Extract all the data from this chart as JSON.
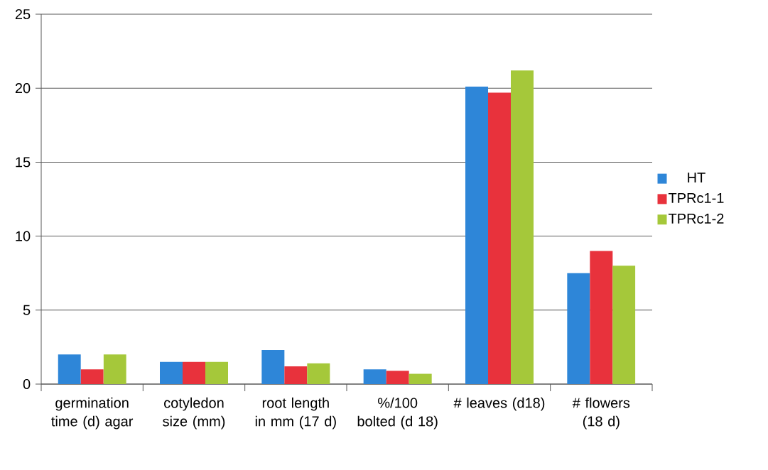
{
  "chart_data": {
    "type": "bar",
    "categories": [
      "germination time (d) agar",
      "cotyledon size (mm)",
      "root length in mm (17 d)",
      "%/100 bolted (d 18)",
      "# leaves (d18)",
      "# flowers (18 d)"
    ],
    "series": [
      {
        "name": "HT",
        "color": "#2e86d8",
        "values": [
          2.0,
          1.5,
          2.3,
          1.0,
          20.1,
          7.5
        ]
      },
      {
        "name": "TPRc1-1",
        "color": "#e8323c",
        "values": [
          1.0,
          1.5,
          1.2,
          0.9,
          19.7,
          9.0
        ]
      },
      {
        "name": "TPRc1-2",
        "color": "#a5c83a",
        "values": [
          2.0,
          1.5,
          1.4,
          0.7,
          21.2,
          8.0
        ]
      }
    ],
    "ylim": [
      0,
      25
    ],
    "yticks": [
      0,
      5,
      10,
      15,
      20,
      25
    ],
    "grid": "y",
    "legend": "right"
  }
}
